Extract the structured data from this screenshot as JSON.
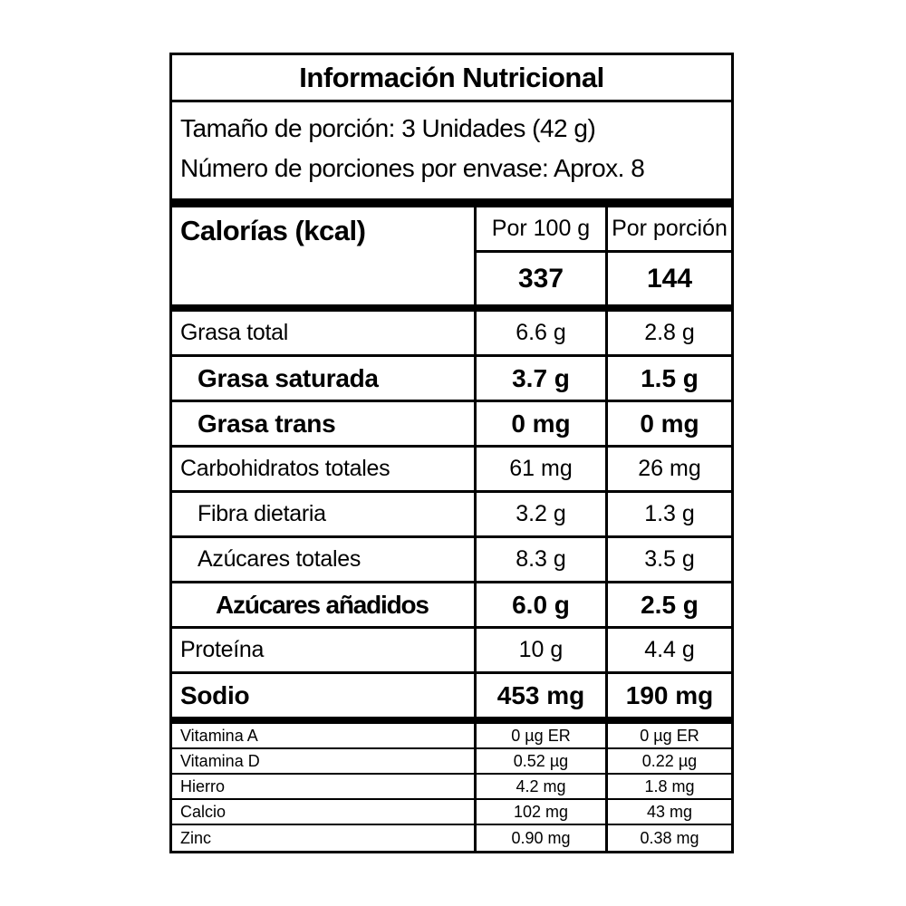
{
  "title": "Información Nutricional",
  "serving": {
    "size": "Tamaño de porción: 3 Unidades (42 g)",
    "count": "Número de porciones por envase: Aprox. 8"
  },
  "calories": {
    "label": "Calorías (kcal)",
    "col_per100": "Por 100 g",
    "col_portion": "Por porción",
    "per100": "337",
    "portion": "144"
  },
  "rows": [
    {
      "name": "Grasa total",
      "per100": "6.6 g",
      "portion": "2.8 g"
    },
    {
      "name": "Grasa saturada",
      "per100": "3.7 g",
      "portion": "1.5 g"
    },
    {
      "name": "Grasa trans",
      "per100": "0 mg",
      "portion": "0 mg"
    },
    {
      "name": "Carbohidratos totales",
      "per100": "61 mg",
      "portion": "26 mg"
    },
    {
      "name": "Fibra dietaria",
      "per100": "3.2 g",
      "portion": "1.3 g"
    },
    {
      "name": "Azúcares totales",
      "per100": "8.3 g",
      "portion": "3.5 g"
    },
    {
      "name": "Azúcares añadidos",
      "per100": "6.0 g",
      "portion": "2.5 g"
    },
    {
      "name": "Proteína",
      "per100": "10 g",
      "portion": "4.4 g"
    },
    {
      "name": "Sodio",
      "per100": "453 mg",
      "portion": "190 mg"
    }
  ],
  "micronutrients": [
    {
      "name": "Vitamina A",
      "per100": "0 µg ER",
      "portion": "0 µg ER"
    },
    {
      "name": "Vitamina D",
      "per100": "0.52 µg",
      "portion": "0.22 µg"
    },
    {
      "name": "Hierro",
      "per100": "4.2 mg",
      "portion": "1.8 mg"
    },
    {
      "name": "Calcio",
      "per100": "102 mg",
      "portion": "43 mg"
    },
    {
      "name": "Zinc",
      "per100": "0.90 mg",
      "portion": "0.38 mg"
    }
  ],
  "colors": {
    "border": "#000000",
    "background": "#ffffff",
    "text": "#000000"
  }
}
